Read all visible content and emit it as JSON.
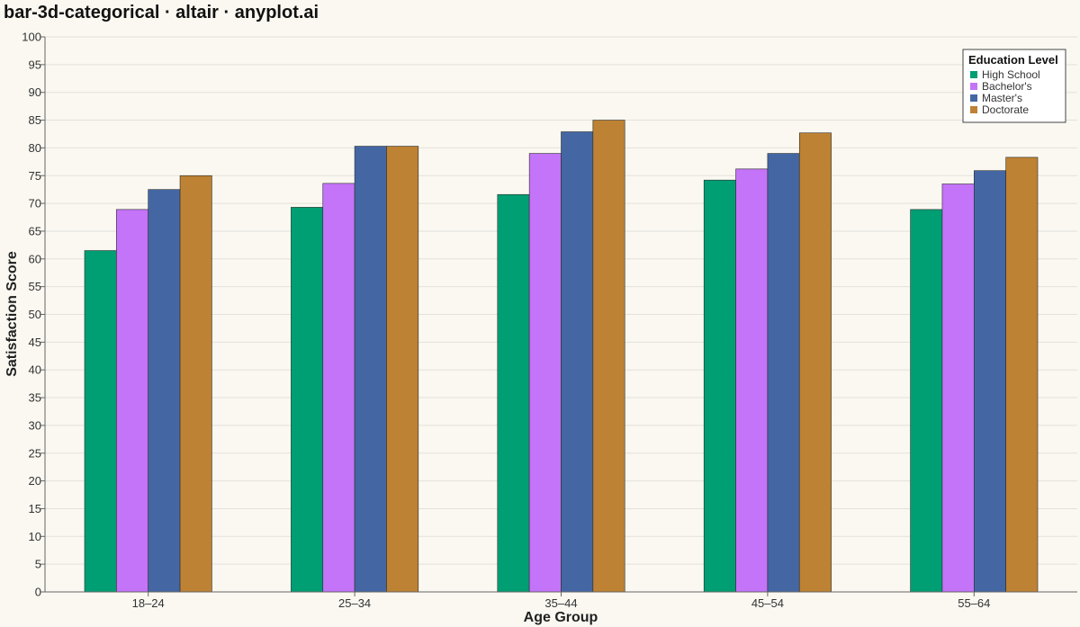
{
  "chart_data": {
    "type": "bar",
    "title": "bar-3d-categorical · altair · anyplot.ai",
    "xlabel": "Age Group",
    "ylabel": "Satisfaction Score",
    "ylim": [
      0,
      100
    ],
    "ytick_step": 5,
    "grid": true,
    "legend": {
      "title": "Education Level",
      "placement": "top-right"
    },
    "categories": [
      "18–24",
      "25–34",
      "35–44",
      "45–54",
      "55–64"
    ],
    "series": [
      {
        "name": "High School",
        "color": "#009e73",
        "values": [
          61.5,
          69.3,
          71.6,
          74.2,
          68.9
        ]
      },
      {
        "name": "Bachelor's",
        "color": "#c474f8",
        "values": [
          68.9,
          73.6,
          79.0,
          76.2,
          73.5
        ]
      },
      {
        "name": "Master's",
        "color": "#4467a4",
        "values": [
          72.5,
          80.3,
          82.9,
          79.0,
          75.9
        ]
      },
      {
        "name": "Doctorate",
        "color": "#bd8233",
        "values": [
          75.0,
          80.3,
          85.0,
          82.7,
          78.3
        ]
      }
    ]
  }
}
